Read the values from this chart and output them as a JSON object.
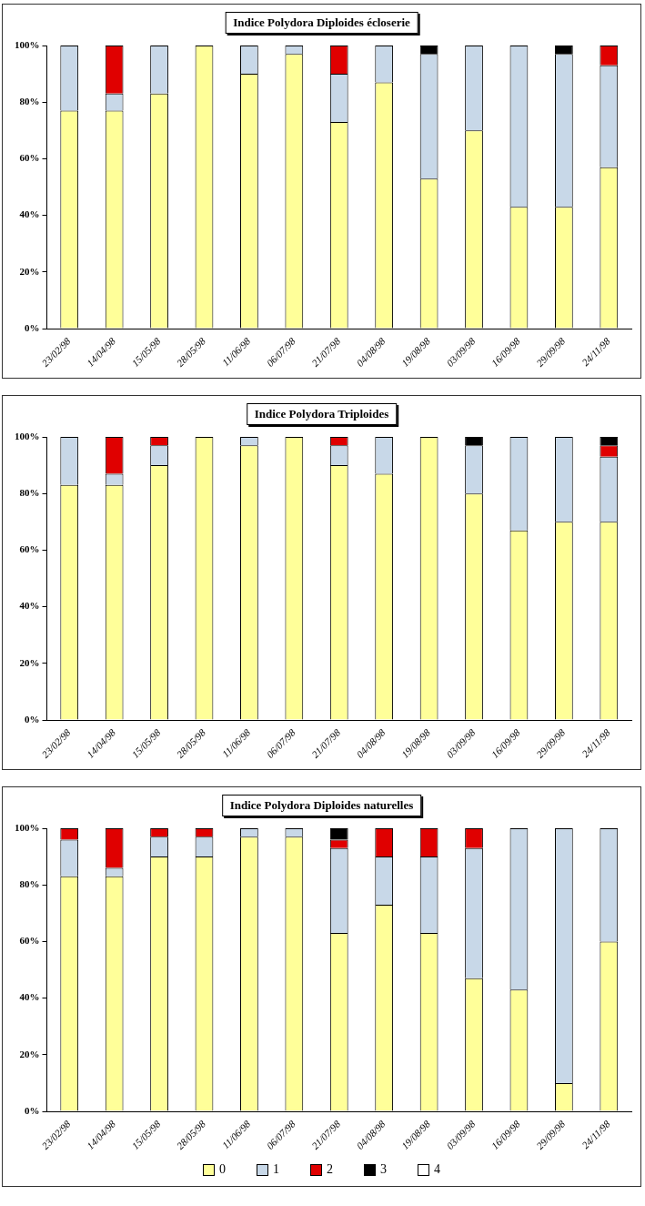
{
  "chart_data": [
    {
      "type": "bar",
      "title": "Indice Polydora Diploides écloserie",
      "stacked": true,
      "categories": [
        "23/02/98",
        "14/04/98",
        "15/05/98",
        "28/05/98",
        "11/06/98",
        "06/07/98",
        "21/07/98",
        "04/08/98",
        "19/08/98",
        "03/09/98",
        "16/09/98",
        "29/09/98",
        "24/11/98"
      ],
      "series": [
        {
          "color": "#ffff99",
          "values": [
            77,
            77,
            83,
            100,
            90,
            97,
            73,
            87,
            53,
            70,
            43,
            43,
            57
          ]
        },
        {
          "color": "#c8d8e8",
          "values": [
            23,
            6,
            17,
            0,
            10,
            3,
            17,
            13,
            44,
            30,
            57,
            54,
            36
          ]
        },
        {
          "color": "#e00000",
          "values": [
            0,
            17,
            0,
            0,
            0,
            0,
            10,
            0,
            0,
            0,
            0,
            0,
            7
          ]
        },
        {
          "color": "#000000",
          "values": [
            0,
            0,
            0,
            0,
            0,
            0,
            0,
            0,
            3,
            0,
            0,
            3,
            0
          ]
        }
      ],
      "ylim": [
        0,
        100
      ],
      "yticks": [
        {
          "value": 0,
          "label": "0%"
        },
        {
          "value": 20,
          "label": "20%"
        },
        {
          "value": 40,
          "label": "40%"
        },
        {
          "value": 60,
          "label": "60%"
        },
        {
          "value": 80,
          "label": "80%"
        },
        {
          "value": 100,
          "label": "100%"
        }
      ],
      "grid": false,
      "legend": false
    },
    {
      "type": "bar",
      "title": "Indice Polydora Triploides",
      "stacked": true,
      "categories": [
        "23/02/98",
        "14/04/98",
        "15/05/98",
        "28/05/98",
        "11/06/98",
        "06/07/98",
        "21/07/98",
        "04/08/98",
        "19/08/98",
        "03/09/98",
        "16/09/98",
        "29/09/98",
        "24/11/98"
      ],
      "series": [
        {
          "color": "#ffff99",
          "values": [
            83,
            83,
            90,
            100,
            97,
            100,
            90,
            87,
            100,
            80,
            67,
            70,
            70
          ]
        },
        {
          "color": "#c8d8e8",
          "values": [
            17,
            4,
            7,
            0,
            3,
            0,
            7,
            13,
            0,
            17,
            33,
            30,
            23
          ]
        },
        {
          "color": "#e00000",
          "values": [
            0,
            13,
            3,
            0,
            0,
            0,
            3,
            0,
            0,
            0,
            0,
            0,
            4
          ]
        },
        {
          "color": "#000000",
          "values": [
            0,
            0,
            0,
            0,
            0,
            0,
            0,
            0,
            0,
            3,
            0,
            0,
            3
          ]
        }
      ],
      "ylim": [
        0,
        100
      ],
      "yticks": [
        {
          "value": 0,
          "label": "0%"
        },
        {
          "value": 20,
          "label": "20%"
        },
        {
          "value": 40,
          "label": "40%"
        },
        {
          "value": 60,
          "label": "60%"
        },
        {
          "value": 80,
          "label": "80%"
        },
        {
          "value": 100,
          "label": "100%"
        }
      ],
      "grid": false,
      "legend": false
    },
    {
      "type": "bar",
      "title": "Indice Polydora Diploides naturelles",
      "stacked": true,
      "categories": [
        "23/02/98",
        "14/04/98",
        "15/05/98",
        "28/05/98",
        "11/06/98",
        "06/07/98",
        "21/07/98",
        "04/08/98",
        "19/08/98",
        "03/09/98",
        "16/09/98",
        "29/09/98",
        "24/11/98"
      ],
      "series": [
        {
          "name": "0",
          "color": "#ffff99",
          "values": [
            83,
            83,
            90,
            90,
            97,
            97,
            63,
            73,
            63,
            47,
            43,
            10,
            60
          ]
        },
        {
          "name": "1",
          "color": "#c8d8e8",
          "values": [
            13,
            3,
            7,
            7,
            3,
            3,
            30,
            17,
            27,
            46,
            57,
            90,
            40
          ]
        },
        {
          "name": "2",
          "color": "#e00000",
          "values": [
            4,
            14,
            3,
            3,
            0,
            0,
            3,
            10,
            10,
            7,
            0,
            0,
            0
          ]
        },
        {
          "name": "3",
          "color": "#000000",
          "values": [
            0,
            0,
            0,
            0,
            0,
            0,
            4,
            0,
            0,
            0,
            0,
            0,
            0
          ]
        },
        {
          "name": "4",
          "color": "#ffffff",
          "values": [
            0,
            0,
            0,
            0,
            0,
            0,
            0,
            0,
            0,
            0,
            0,
            0,
            0
          ]
        }
      ],
      "ylim": [
        0,
        100
      ],
      "yticks": [
        {
          "value": 0,
          "label": "0%"
        },
        {
          "value": 20,
          "label": "20%"
        },
        {
          "value": 40,
          "label": "40%"
        },
        {
          "value": 60,
          "label": "60%"
        },
        {
          "value": 80,
          "label": "80%"
        },
        {
          "value": 100,
          "label": "100%"
        }
      ],
      "grid": false,
      "legend": "bottom"
    }
  ]
}
